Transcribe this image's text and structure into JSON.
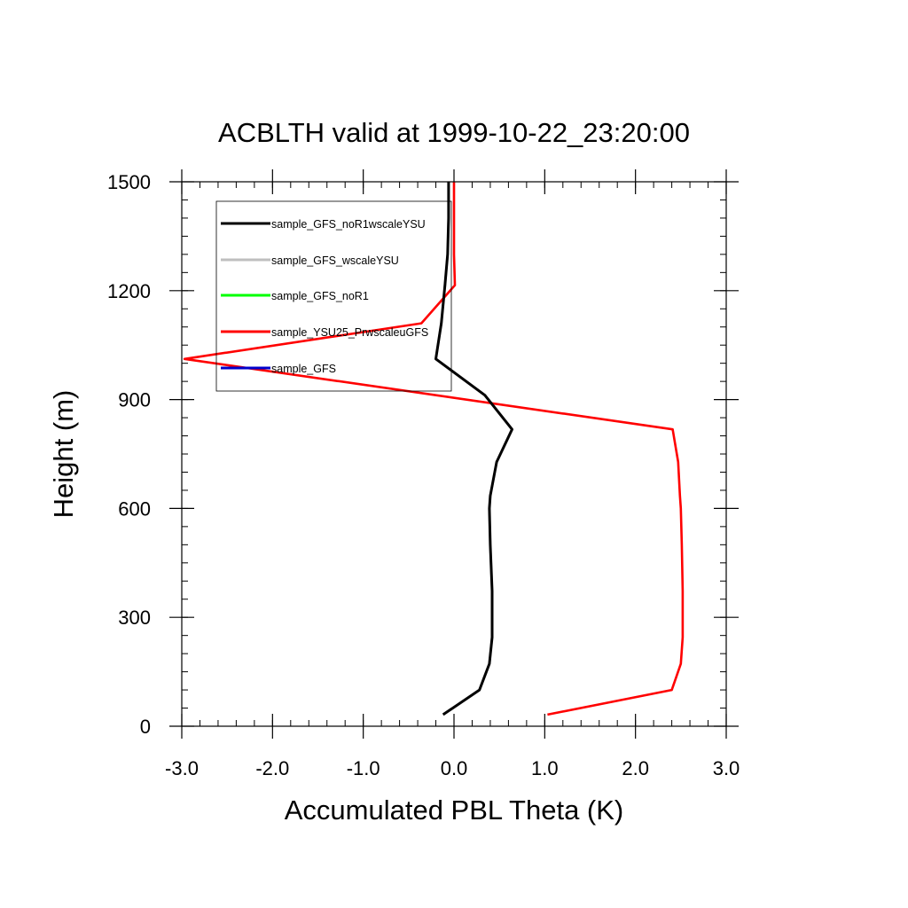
{
  "chart_data": {
    "type": "line",
    "title": "ACBLTH valid at 1999-10-22_23:20:00",
    "xlabel": "Accumulated PBL Theta (K)",
    "ylabel": "Height (m)",
    "xlim": [
      -3.0,
      3.0
    ],
    "ylim": [
      0,
      1500
    ],
    "xticks": [
      -3.0,
      -2.0,
      -1.0,
      0.0,
      1.0,
      2.0,
      3.0
    ],
    "xtick_labels": [
      "-3.0",
      "-2.0",
      "-1.0",
      "0.0",
      "1.0",
      "2.0",
      "3.0"
    ],
    "yticks": [
      0,
      300,
      600,
      900,
      1200,
      1500
    ],
    "ytick_labels": [
      "0",
      "300",
      "600",
      "900",
      "1200",
      "1500"
    ],
    "grid": false,
    "legend_position": "top-left",
    "series": [
      {
        "name": "sample_GFS_noR1wscaleYSU",
        "color": "#000000",
        "x": [
          -0.12,
          0.28,
          0.39,
          0.42,
          0.42,
          0.4,
          0.39,
          0.4,
          0.47,
          0.64,
          0.34,
          -0.2,
          -0.14,
          -0.1,
          -0.07,
          -0.06,
          -0.06
        ],
        "y": [
          32,
          100,
          172,
          245,
          372,
          500,
          600,
          635,
          728,
          818,
          912,
          1012,
          1110,
          1215,
          1300,
          1400,
          1500
        ]
      },
      {
        "name": "sample_GFS_wscaleYSU",
        "color": "#bfbfbf",
        "x": [
          -0.12,
          0.28,
          0.39,
          0.42,
          0.42,
          0.4,
          0.39,
          0.4,
          0.47,
          0.64,
          0.34,
          -0.2,
          -0.14,
          -0.1,
          -0.07,
          -0.06,
          -0.06
        ],
        "y": [
          32,
          100,
          172,
          245,
          372,
          500,
          600,
          635,
          728,
          818,
          912,
          1012,
          1110,
          1215,
          1300,
          1400,
          1500
        ]
      },
      {
        "name": "sample_GFS_noR1",
        "color": "#00ff00",
        "x": [],
        "y": []
      },
      {
        "name": "sample_YSU25_PrwscaleuGFS",
        "color": "#ff0000",
        "x": [
          1.03,
          2.4,
          2.5,
          2.52,
          2.52,
          2.51,
          2.5,
          2.49,
          2.47,
          2.41,
          -2.97,
          -0.36,
          0.01,
          0.0,
          0.0
        ],
        "y": [
          32,
          100,
          172,
          245,
          372,
          500,
          600,
          635,
          728,
          818,
          1012,
          1110,
          1215,
          1300,
          1500
        ]
      },
      {
        "name": "sample_GFS",
        "color": "#0000cc",
        "x": [],
        "y": []
      }
    ]
  }
}
